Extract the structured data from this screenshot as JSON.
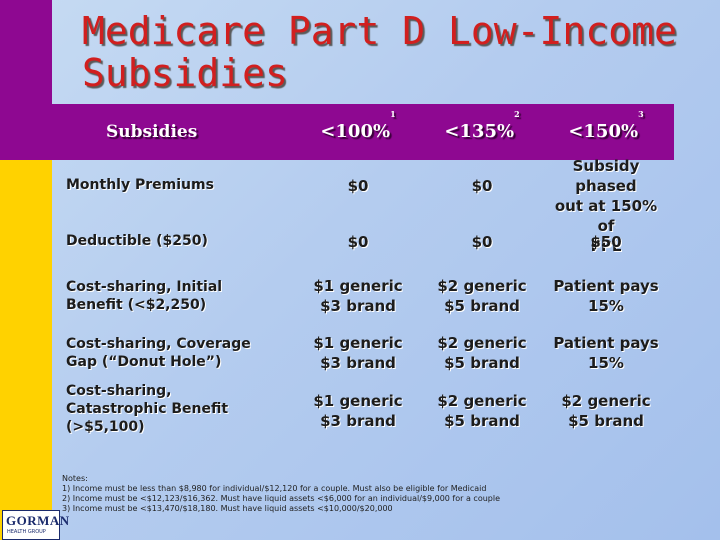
{
  "title": {
    "line1": "Medicare Part D Low-Income",
    "line2": "Subsidies"
  },
  "header": {
    "subsidies": "Subsidies",
    "col1": "<100%",
    "col1_note": "1",
    "col2": "<135%",
    "col2_note": "2",
    "col3": "<150%",
    "col3_note": "3"
  },
  "rows": [
    {
      "label": [
        "Monthly Premiums"
      ],
      "col1": [
        "$0"
      ],
      "col2": [
        "$0"
      ],
      "col3": [
        "Subsidy phased",
        "out at 150% of",
        "FPL"
      ]
    },
    {
      "label": [
        "Deductible ($250)"
      ],
      "col1": [
        "$0"
      ],
      "col2": [
        "$0"
      ],
      "col3": [
        "$50"
      ]
    },
    {
      "label": [
        "Cost-sharing, Initial",
        "Benefit (<$2,250)"
      ],
      "col1": [
        "$1 generic",
        "$3 brand"
      ],
      "col2": [
        "$2 generic",
        "$5 brand"
      ],
      "col3": [
        "Patient pays",
        "15%"
      ]
    },
    {
      "label": [
        "Cost-sharing, Coverage",
        "Gap (“Donut Hole”)"
      ],
      "col1": [
        "$1 generic",
        "$3 brand"
      ],
      "col2": [
        "$2 generic",
        "$5 brand"
      ],
      "col3": [
        "Patient pays",
        "15%"
      ]
    },
    {
      "label": [
        "Cost-sharing,",
        "Catastrophic Benefit",
        "(>$5,100)"
      ],
      "col1": [
        "$1 generic",
        "$3 brand"
      ],
      "col2": [
        "$2 generic",
        "$5 brand"
      ],
      "col3": [
        "$2 generic",
        "$5 brand"
      ]
    }
  ],
  "notes": {
    "heading": "Notes:",
    "items": [
      "1) Income must be less than $8,980 for individual/$12,120 for a couple.  Must also be eligible for Medicaid",
      "2) Income must be <$12,123/$16,362.  Must have liquid assets <$6,000 for an individual/$9,000 for a couple",
      "3) Income must be <$13,470/$18,180.  Must have liquid assets <$10,000/$20,000"
    ]
  },
  "logo": {
    "name": "GORMAN",
    "tagline": "HEALTH GROUP"
  }
}
